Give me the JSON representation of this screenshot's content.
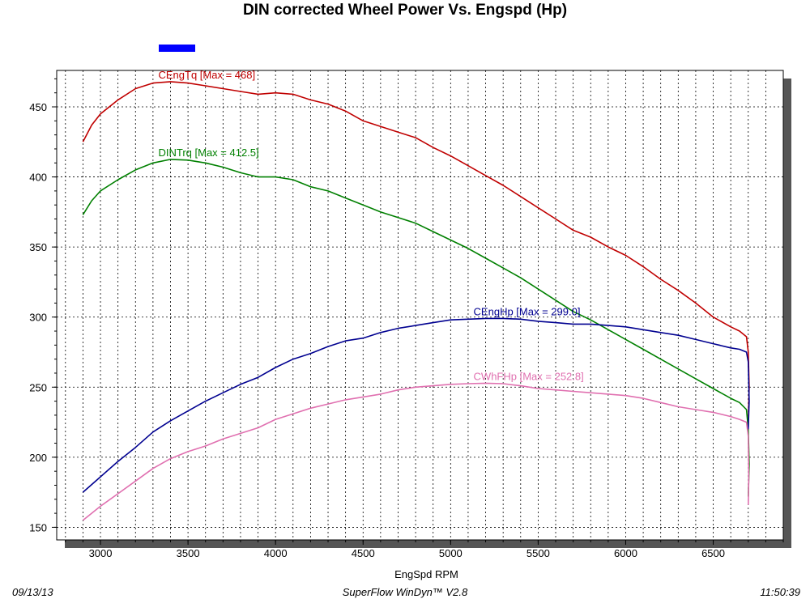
{
  "chart_data": {
    "type": "line",
    "title": "DIN corrected Wheel Power Vs. Engspd (Hp)",
    "xlabel": "EngSpd RPM",
    "ylabel": "",
    "xlim": [
      2750,
      6900
    ],
    "ylim": [
      141,
      476
    ],
    "x_ticks": [
      3000,
      3500,
      4000,
      4500,
      5000,
      5500,
      6000,
      6500
    ],
    "y_ticks": [
      150,
      200,
      250,
      300,
      350,
      400,
      450
    ],
    "grid": true,
    "legend_swatch_color": "#0000ff",
    "series": [
      {
        "name": "CEngTq",
        "label": "CEngTq [Max = 468]",
        "color": "#c00000",
        "points": [
          [
            2900,
            425
          ],
          [
            2950,
            437
          ],
          [
            3000,
            445
          ],
          [
            3100,
            455
          ],
          [
            3200,
            463
          ],
          [
            3300,
            467
          ],
          [
            3400,
            468
          ],
          [
            3500,
            467
          ],
          [
            3600,
            465
          ],
          [
            3700,
            463
          ],
          [
            3800,
            461
          ],
          [
            3900,
            459
          ],
          [
            4000,
            460
          ],
          [
            4100,
            459
          ],
          [
            4200,
            455
          ],
          [
            4300,
            452
          ],
          [
            4400,
            447
          ],
          [
            4500,
            440
          ],
          [
            4600,
            436
          ],
          [
            4700,
            432
          ],
          [
            4800,
            428
          ],
          [
            4900,
            421
          ],
          [
            5000,
            415
          ],
          [
            5100,
            408
          ],
          [
            5200,
            401
          ],
          [
            5300,
            394
          ],
          [
            5400,
            386
          ],
          [
            5500,
            378
          ],
          [
            5600,
            370
          ],
          [
            5700,
            362
          ],
          [
            5800,
            357
          ],
          [
            5900,
            350
          ],
          [
            6000,
            344
          ],
          [
            6100,
            336
          ],
          [
            6200,
            327
          ],
          [
            6300,
            319
          ],
          [
            6400,
            310
          ],
          [
            6500,
            300
          ],
          [
            6600,
            293
          ],
          [
            6650,
            290
          ],
          [
            6690,
            286
          ],
          [
            6700,
            275
          ],
          [
            6705,
            250
          ],
          [
            6700,
            225
          ]
        ]
      },
      {
        "name": "DINTrq",
        "label": "DINTrq [Max = 412.5]",
        "color": "#008000",
        "points": [
          [
            2900,
            373
          ],
          [
            2950,
            383
          ],
          [
            3000,
            390
          ],
          [
            3100,
            398
          ],
          [
            3200,
            405
          ],
          [
            3300,
            410
          ],
          [
            3400,
            412.5
          ],
          [
            3500,
            412
          ],
          [
            3600,
            410
          ],
          [
            3700,
            407
          ],
          [
            3800,
            403
          ],
          [
            3900,
            400
          ],
          [
            4000,
            400
          ],
          [
            4100,
            398
          ],
          [
            4200,
            393
          ],
          [
            4300,
            390
          ],
          [
            4400,
            385
          ],
          [
            4500,
            380
          ],
          [
            4600,
            375
          ],
          [
            4700,
            371
          ],
          [
            4800,
            367
          ],
          [
            4900,
            361
          ],
          [
            5000,
            355
          ],
          [
            5100,
            349
          ],
          [
            5200,
            342
          ],
          [
            5300,
            335
          ],
          [
            5400,
            328
          ],
          [
            5500,
            320
          ],
          [
            5600,
            312
          ],
          [
            5700,
            304
          ],
          [
            5800,
            298
          ],
          [
            5900,
            291
          ],
          [
            6000,
            284
          ],
          [
            6100,
            277
          ],
          [
            6200,
            270
          ],
          [
            6300,
            263
          ],
          [
            6400,
            256
          ],
          [
            6500,
            249
          ],
          [
            6600,
            242
          ],
          [
            6650,
            239
          ],
          [
            6690,
            234
          ],
          [
            6700,
            220
          ],
          [
            6705,
            195
          ],
          [
            6700,
            172
          ]
        ]
      },
      {
        "name": "CEngHp",
        "label": "CEngHp [Max = 299.0]",
        "color": "#000090",
        "points": [
          [
            2900,
            175
          ],
          [
            3000,
            186
          ],
          [
            3100,
            197
          ],
          [
            3200,
            207
          ],
          [
            3300,
            218
          ],
          [
            3400,
            226
          ],
          [
            3500,
            233
          ],
          [
            3600,
            240
          ],
          [
            3700,
            246
          ],
          [
            3800,
            252
          ],
          [
            3900,
            257
          ],
          [
            4000,
            264
          ],
          [
            4100,
            270
          ],
          [
            4200,
            274
          ],
          [
            4300,
            279
          ],
          [
            4400,
            283
          ],
          [
            4500,
            285
          ],
          [
            4600,
            289
          ],
          [
            4700,
            292
          ],
          [
            4800,
            294
          ],
          [
            4900,
            296
          ],
          [
            5000,
            298
          ],
          [
            5100,
            298.5
          ],
          [
            5200,
            299
          ],
          [
            5300,
            299
          ],
          [
            5400,
            298.5
          ],
          [
            5500,
            297
          ],
          [
            5600,
            296
          ],
          [
            5700,
            295
          ],
          [
            5800,
            295
          ],
          [
            5900,
            294
          ],
          [
            6000,
            293
          ],
          [
            6100,
            291
          ],
          [
            6200,
            289
          ],
          [
            6300,
            287
          ],
          [
            6400,
            284
          ],
          [
            6500,
            281
          ],
          [
            6600,
            278
          ],
          [
            6650,
            277
          ],
          [
            6690,
            275
          ],
          [
            6700,
            268
          ],
          [
            6705,
            240
          ],
          [
            6700,
            220
          ]
        ]
      },
      {
        "name": "CWhFHp",
        "label": "CWhFHp [Max = 252.8]",
        "color": "#e070b0",
        "points": [
          [
            2900,
            155
          ],
          [
            3000,
            165
          ],
          [
            3100,
            174
          ],
          [
            3200,
            183
          ],
          [
            3300,
            192
          ],
          [
            3400,
            199
          ],
          [
            3500,
            204
          ],
          [
            3600,
            208
          ],
          [
            3700,
            213
          ],
          [
            3800,
            217
          ],
          [
            3900,
            221
          ],
          [
            4000,
            227
          ],
          [
            4100,
            231
          ],
          [
            4200,
            235
          ],
          [
            4300,
            238
          ],
          [
            4400,
            241
          ],
          [
            4500,
            243
          ],
          [
            4600,
            245
          ],
          [
            4700,
            248
          ],
          [
            4800,
            250
          ],
          [
            4900,
            251
          ],
          [
            5000,
            252
          ],
          [
            5100,
            252.5
          ],
          [
            5200,
            252.8
          ],
          [
            5300,
            252.5
          ],
          [
            5400,
            251
          ],
          [
            5500,
            249
          ],
          [
            5600,
            248
          ],
          [
            5700,
            247
          ],
          [
            5800,
            246
          ],
          [
            5900,
            245
          ],
          [
            6000,
            244
          ],
          [
            6100,
            242
          ],
          [
            6200,
            239
          ],
          [
            6300,
            236
          ],
          [
            6400,
            234
          ],
          [
            6500,
            232
          ],
          [
            6600,
            229
          ],
          [
            6650,
            227
          ],
          [
            6690,
            225
          ],
          [
            6700,
            215
          ],
          [
            6703,
            185
          ],
          [
            6700,
            166
          ]
        ]
      }
    ]
  },
  "footer": {
    "date": "09/13/13",
    "software": "SuperFlow WinDyn™ V2.8",
    "time": "11:50:39"
  }
}
